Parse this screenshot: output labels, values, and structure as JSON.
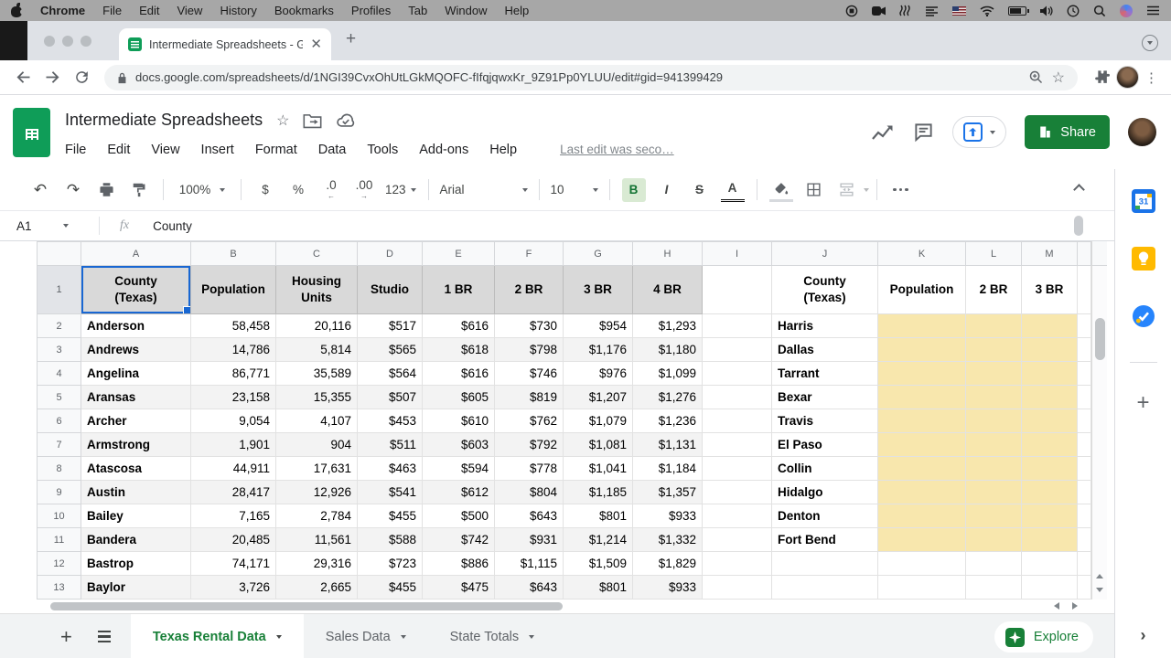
{
  "menubar": {
    "items": [
      "Chrome",
      "File",
      "Edit",
      "View",
      "History",
      "Bookmarks",
      "Profiles",
      "Tab",
      "Window",
      "Help"
    ]
  },
  "browser": {
    "tab_title": "Intermediate Spreadsheets - G",
    "new_tab": "+",
    "url": "docs.google.com/spreadsheets/d/1NGI39CvxOhUtLGkMQOFC-fIfqjqwxKr_9Z91Pp0YLUU/edit#gid=941399429"
  },
  "app": {
    "title": "Intermediate Spreadsheets",
    "menus": [
      "File",
      "Edit",
      "View",
      "Insert",
      "Format",
      "Data",
      "Tools",
      "Add-ons",
      "Help"
    ],
    "last_edit": "Last edit was seco…",
    "share_label": "Share"
  },
  "toolbar": {
    "zoom": "100%",
    "currency": "$",
    "percent": "%",
    "dec_less": ".0",
    "dec_more": ".00",
    "num_format": "123",
    "font": "Arial",
    "font_size": "10",
    "bold": "B",
    "italic": "I",
    "strikethrough": "S",
    "text_color": "A"
  },
  "formula_bar": {
    "cell_ref": "A1",
    "fx": "fx",
    "value": "County"
  },
  "grid": {
    "col_letters": [
      "A",
      "B",
      "C",
      "D",
      "E",
      "F",
      "G",
      "H",
      "I",
      "J",
      "K",
      "L",
      "M"
    ],
    "left_headers": [
      "County\n(Texas)",
      "Population",
      "Housing\nUnits",
      "Studio",
      "1 BR",
      "2 BR",
      "3 BR",
      "4 BR"
    ],
    "right_headers": [
      "County\n(Texas)",
      "Population",
      "2 BR",
      "3 BR"
    ],
    "selected_cell": "A1",
    "rows": [
      [
        2,
        "Anderson",
        "58,458",
        "20,116",
        "$517",
        "$616",
        "$730",
        "$954",
        "$1,293",
        "Harris"
      ],
      [
        3,
        "Andrews",
        "14,786",
        "5,814",
        "$565",
        "$618",
        "$798",
        "$1,176",
        "$1,180",
        "Dallas"
      ],
      [
        4,
        "Angelina",
        "86,771",
        "35,589",
        "$564",
        "$616",
        "$746",
        "$976",
        "$1,099",
        "Tarrant"
      ],
      [
        5,
        "Aransas",
        "23,158",
        "15,355",
        "$507",
        "$605",
        "$819",
        "$1,207",
        "$1,276",
        "Bexar"
      ],
      [
        6,
        "Archer",
        "9,054",
        "4,107",
        "$453",
        "$610",
        "$762",
        "$1,079",
        "$1,236",
        "Travis"
      ],
      [
        7,
        "Armstrong",
        "1,901",
        "904",
        "$511",
        "$603",
        "$792",
        "$1,081",
        "$1,131",
        "El Paso"
      ],
      [
        8,
        "Atascosa",
        "44,911",
        "17,631",
        "$463",
        "$594",
        "$778",
        "$1,041",
        "$1,184",
        "Collin"
      ],
      [
        9,
        "Austin",
        "28,417",
        "12,926",
        "$541",
        "$612",
        "$804",
        "$1,185",
        "$1,357",
        "Hidalgo"
      ],
      [
        10,
        "Bailey",
        "7,165",
        "2,784",
        "$455",
        "$500",
        "$643",
        "$801",
        "$933",
        "Denton"
      ],
      [
        11,
        "Bandera",
        "20,485",
        "11,561",
        "$588",
        "$742",
        "$931",
        "$1,214",
        "$1,332",
        "Fort Bend"
      ],
      [
        12,
        "Bastrop",
        "74,171",
        "29,316",
        "$723",
        "$886",
        "$1,115",
        "$1,509",
        "$1,829",
        ""
      ],
      [
        13,
        "Baylor",
        "3,726",
        "2,665",
        "$455",
        "$475",
        "$643",
        "$801",
        "$933",
        ""
      ]
    ]
  },
  "sheet_tabs": {
    "tabs": [
      "Texas Rental Data",
      "Sales Data",
      "State Totals"
    ],
    "active_index": 0,
    "explore_label": "Explore"
  },
  "colors": {
    "accent_blue": "#1967d2",
    "sheets_green": "#188038",
    "header_fill": "#d9d9d9",
    "band_fill": "#f3f3f3",
    "highlight_yellow": "#f8e7ad"
  }
}
